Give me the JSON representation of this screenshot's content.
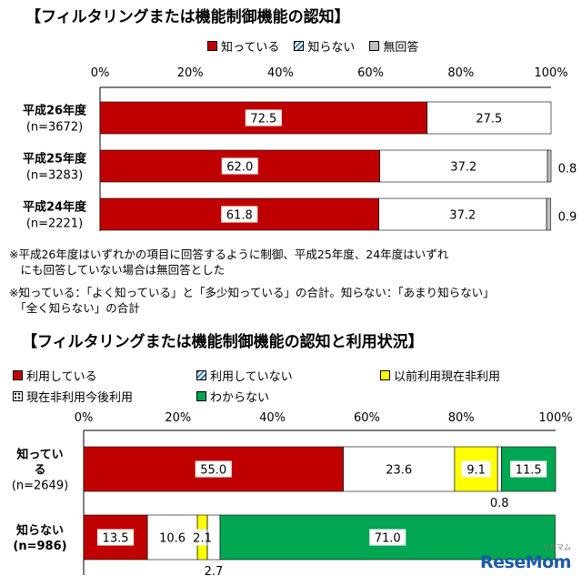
{
  "colors": {
    "red": "#c00000",
    "hatch_blue": "#2e75b6",
    "gray": "#bfbfbf",
    "yellow": "#ffff00",
    "green": "#00a651",
    "white": "#ffffff"
  },
  "chart1": {
    "title": "【フィルタリングまたは機能制御機能の認知】",
    "legend": [
      {
        "label": "知っている",
        "icon": "solid-red-swatch"
      },
      {
        "label": "知らない",
        "icon": "hatched-blue-swatch"
      },
      {
        "label": "無回答",
        "icon": "gray-swatch"
      }
    ],
    "notes": [
      "※平成26年度はいずれかの項目に回答するように制御、平成25年度、24年度はいずれ",
      "　にも回答していない場合は無回答とした",
      "※知っている：「よく知っている」と「多少知っている」の合計。知らない：「あまり知らない」",
      "　「全く知らない」の合計"
    ]
  },
  "chart2": {
    "title": "【フィルタリングまたは機能制御機能の認知と利用状況】",
    "legend": [
      {
        "label": "利用している",
        "icon": "solid-red-swatch"
      },
      {
        "label": "利用していない",
        "icon": "hatched-blue-swatch"
      },
      {
        "label": "以前利用現在非利用",
        "icon": "yellow-swatch"
      },
      {
        "label": "現在非利用今後利用",
        "icon": "dotted-white-swatch"
      },
      {
        "label": "わからない",
        "icon": "green-swatch"
      }
    ]
  },
  "logo": {
    "text": "ReseMom",
    "sub": "リセマム"
  },
  "chart_data": [
    {
      "type": "bar",
      "orientation": "horizontal",
      "stacked": true,
      "title": "【フィルタリングまたは機能制御機能の認知】",
      "categories": [
        {
          "line1": "平成26年度",
          "line2": "(n=3672)"
        },
        {
          "line1": "平成25年度",
          "line2": "(n=3283)"
        },
        {
          "line1": "平成24年度",
          "line2": "(n=2221)"
        }
      ],
      "xticks": [
        "0%",
        "20%",
        "40%",
        "60%",
        "80%",
        "100%"
      ],
      "xlim": [
        0,
        100
      ],
      "legend_position": "top",
      "grid": false,
      "series": [
        {
          "name": "知っている",
          "values": [
            72.5,
            62.0,
            61.8
          ],
          "labels": [
            "72.5",
            "62.0",
            "61.8"
          ]
        },
        {
          "name": "知らない",
          "values": [
            27.5,
            37.2,
            37.2
          ],
          "labels": [
            "27.5",
            "37.2",
            "37.2"
          ]
        },
        {
          "name": "無回答",
          "values": [
            0,
            0.8,
            0.9
          ],
          "labels": [
            "",
            "0.8",
            "0.9"
          ]
        }
      ]
    },
    {
      "type": "bar",
      "orientation": "horizontal",
      "stacked": true,
      "title": "【フィルタリングまたは機能制御機能の認知と利用状況】",
      "categories": [
        {
          "line1": "知ってい",
          "line2": "る",
          "line3": "(n=2649)"
        },
        {
          "line1": "知らない",
          "line2": "(n=986)",
          "line3": ""
        }
      ],
      "xticks": [
        "0%",
        "20%",
        "40%",
        "60%",
        "80%",
        "100%"
      ],
      "xlim": [
        0,
        100
      ],
      "legend_position": "top",
      "grid": false,
      "series": [
        {
          "name": "利用している",
          "values": [
            55.0,
            13.5
          ],
          "labels": [
            "55.0",
            "13.5"
          ]
        },
        {
          "name": "利用していない",
          "values": [
            23.6,
            10.6
          ],
          "labels": [
            "23.6",
            "10.6"
          ]
        },
        {
          "name": "以前利用現在非利用",
          "values": [
            9.1,
            2.1
          ],
          "labels": [
            "9.1",
            "2.1"
          ]
        },
        {
          "name": "現在非利用今後利用",
          "values": [
            0.8,
            2.7
          ],
          "labels": [
            "0.8",
            "2.7"
          ]
        },
        {
          "name": "わからない",
          "values": [
            11.5,
            71.0
          ],
          "labels": [
            "11.5",
            "71.0"
          ]
        }
      ]
    }
  ]
}
